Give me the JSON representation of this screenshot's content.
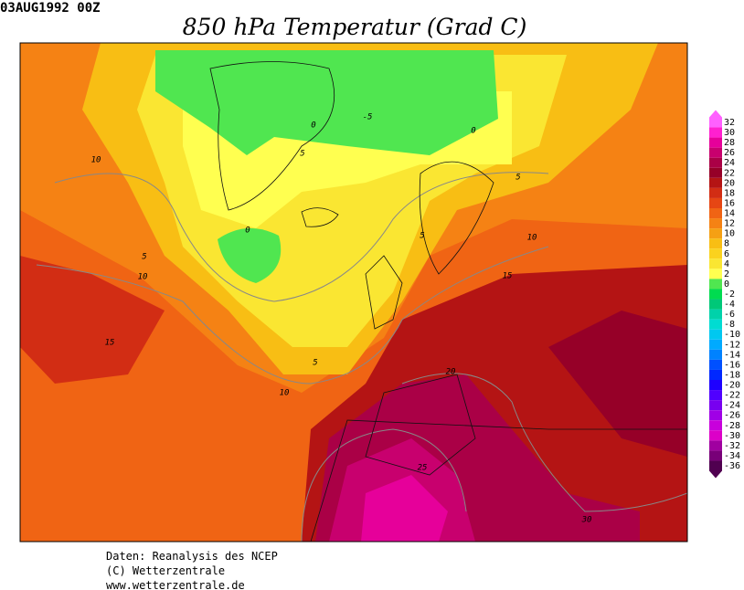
{
  "header": {
    "date": "03AUG1992 00Z",
    "title": "850 hPa Temperatur (Grad C)"
  },
  "map": {
    "contour_labels": [
      "10",
      "0",
      "-5",
      "0",
      "5",
      "5",
      "0",
      "5",
      "10",
      "5",
      "10",
      "15",
      "15",
      "5",
      "20",
      "10",
      "25",
      "30"
    ]
  },
  "legend": {
    "levels": [
      32,
      30,
      28,
      26,
      24,
      22,
      20,
      18,
      16,
      14,
      12,
      10,
      8,
      6,
      4,
      2,
      0,
      -2,
      -4,
      -6,
      -8,
      -10,
      -12,
      -14,
      -16,
      -18,
      -20,
      -22,
      -24,
      -26,
      -28,
      -30,
      -32,
      -34,
      -36
    ],
    "colors": [
      "#ff60ff",
      "#ff20d0",
      "#e6009a",
      "#c8006e",
      "#aa0046",
      "#960028",
      "#b41414",
      "#d22d14",
      "#e64614",
      "#f06414",
      "#f58214",
      "#f5a014",
      "#f8be14",
      "#fad21e",
      "#fae632",
      "#ffff50",
      "#50e650",
      "#00dc50",
      "#00c878",
      "#00d2aa",
      "#00dcd2",
      "#00c8f0",
      "#00aaff",
      "#0082ff",
      "#0050ff",
      "#0028ff",
      "#1e00ff",
      "#5000ff",
      "#7800f0",
      "#a000e6",
      "#c800dc",
      "#dc00c8",
      "#a000a0",
      "#780078",
      "#500050"
    ]
  },
  "footer": {
    "lines": [
      "Daten: Reanalysis des NCEP",
      "(C) Wetterzentrale",
      "www.wetterzentrale.de"
    ]
  }
}
